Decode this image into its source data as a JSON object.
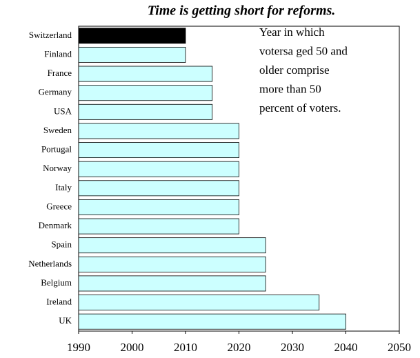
{
  "chart_data": {
    "type": "bar",
    "orientation": "horizontal",
    "title": "Time is getting short for reforms.",
    "categories": [
      "Switzerland",
      "Finland",
      "France",
      "Germany",
      "USA",
      "Sweden",
      "Portugal",
      "Norway",
      "Italy",
      "Greece",
      "Denmark",
      "Spain",
      "Netherlands",
      "Belgium",
      "Ireland",
      "UK"
    ],
    "values": [
      2010,
      2010,
      2015,
      2015,
      2015,
      2020,
      2020,
      2020,
      2020,
      2020,
      2020,
      2025,
      2025,
      2025,
      2035,
      2040
    ],
    "colors": [
      "#000000",
      "#ccffff",
      "#ccffff",
      "#ccffff",
      "#ccffff",
      "#ccffff",
      "#ccffff",
      "#ccffff",
      "#ccffff",
      "#ccffff",
      "#ccffff",
      "#ccffff",
      "#ccffff",
      "#ccffff",
      "#ccffff",
      "#ccffff"
    ],
    "xlim": [
      1990,
      2050
    ],
    "xticks": [
      1990,
      2000,
      2010,
      2020,
      2030,
      2040,
      2050
    ],
    "grid": false,
    "annotation": [
      "Year in which",
      "votersa ged 50 and",
      "older comprise",
      "more than 50",
      "percent of voters."
    ]
  }
}
